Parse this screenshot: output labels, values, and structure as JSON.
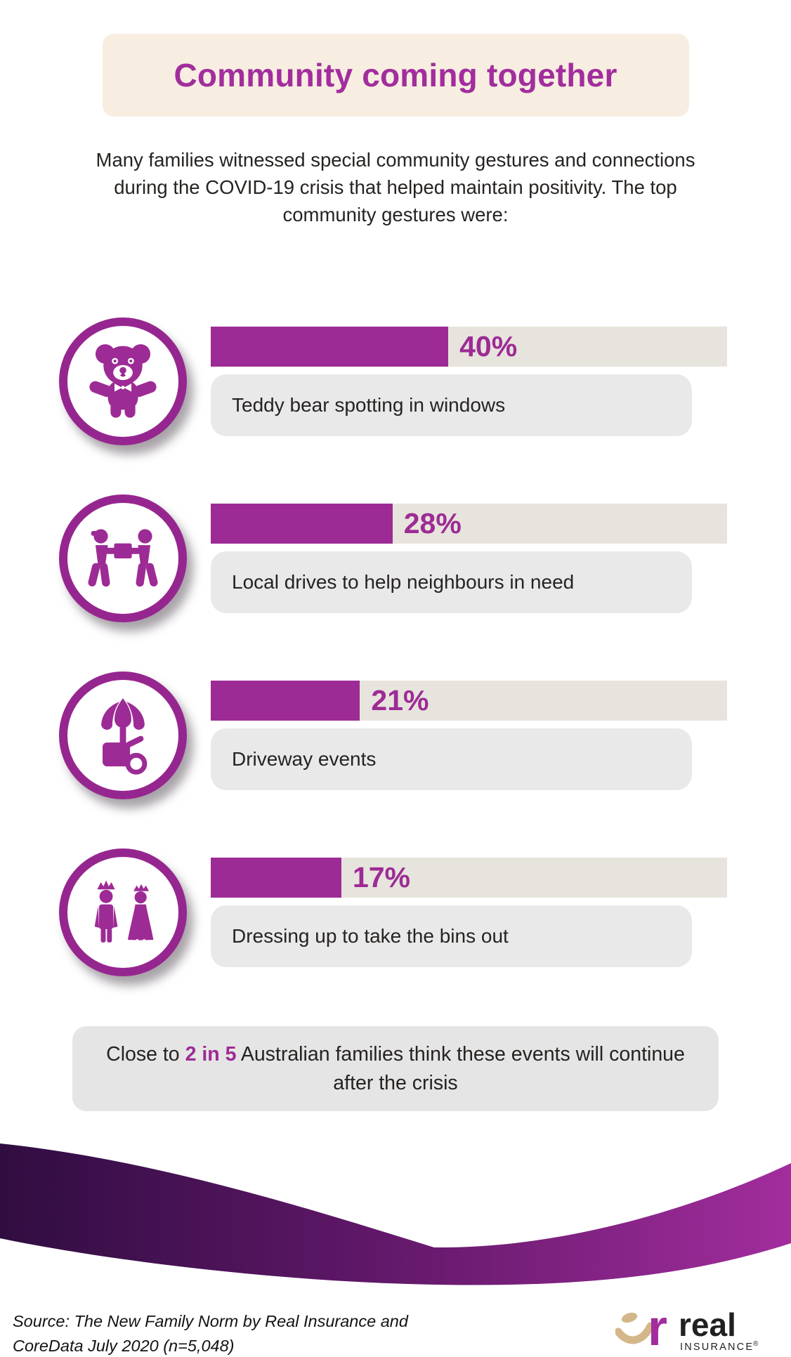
{
  "title": "Community coming together",
  "intro": "Many families witnessed special community gestures and connections during the COVID-19 crisis that helped maintain positivity. The top community gestures were:",
  "chart_data": {
    "type": "bar",
    "orientation": "horizontal",
    "unit": "%",
    "categories": [
      "Teddy bear spotting in windows",
      "Local drives to help neighbours in need",
      "Driveway events",
      "Dressing up to take the bins out"
    ],
    "values": [
      40,
      28,
      21,
      17
    ],
    "value_labels": [
      "40%",
      "28%",
      "21%",
      "17%"
    ],
    "icons": [
      "teddy-bear",
      "neighbours-carrying-box",
      "driveway-cart",
      "king-and-queen-dress-up"
    ],
    "bar_color": "#9d2b95",
    "track_color": "#e7e4dd",
    "legend": "none",
    "grid": false
  },
  "callout": {
    "prefix": "Close to ",
    "highlight": "2 in 5",
    "suffix": " Australian families think these events will continue after the crisis"
  },
  "footer": {
    "source": "Source: The New Family Norm by Real Insurance and CoreData July 2020 (n=5,048)",
    "logo": {
      "r": "r",
      "wordmark": "real",
      "subtitle": "INSURANCE",
      "registered": "®"
    }
  },
  "colors": {
    "primary_purple": "#9d2b95",
    "ring_purple": "#96268f",
    "title_purple": "#a22d9d",
    "banner_cream": "#f7eee1",
    "bar_track": "#e7e4dd",
    "label_box": "#e9e9e9",
    "callout_box": "#e5e5e5",
    "wave_dark": "#300d41",
    "wave_bright": "#a22d9d",
    "logo_tan": "#d3b78a",
    "text_dark": "#262321"
  }
}
